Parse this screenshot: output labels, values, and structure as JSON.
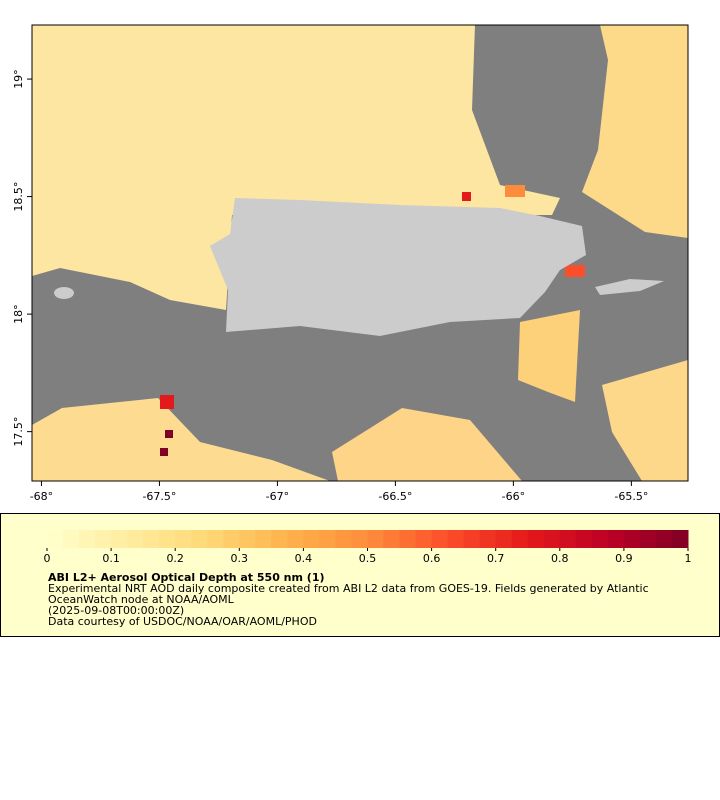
{
  "chart_data": {
    "type": "map",
    "xlim": [
      -68.04,
      -65.26
    ],
    "ylim": [
      17.29,
      19.23
    ],
    "xticks": [
      {
        "value": -68,
        "label": "-68°"
      },
      {
        "value": -67.5,
        "label": "-67.5°"
      },
      {
        "value": -67,
        "label": "-67°"
      },
      {
        "value": -66.5,
        "label": "-66.5°"
      },
      {
        "value": -66,
        "label": "-66°"
      },
      {
        "value": -65.5,
        "label": "-65.5°"
      }
    ],
    "yticks": [
      {
        "value": 17.5,
        "label": "17.5°"
      },
      {
        "value": 18,
        "label": "18°"
      },
      {
        "value": 18.5,
        "label": "18.5°"
      },
      {
        "value": 19,
        "label": "19°"
      }
    ],
    "colorbar": {
      "lim": [
        0,
        1
      ],
      "ticks": [
        0,
        0.1,
        0.2,
        0.3,
        0.4,
        0.5,
        0.6,
        0.7,
        0.8,
        0.9,
        1
      ],
      "colors": [
        "#ffffcc",
        "#ffeda0",
        "#fed976",
        "#feb24c",
        "#fd8d3c",
        "#fc4e2a",
        "#e31a1c",
        "#bd0026",
        "#800026"
      ]
    },
    "title": "ABI L2+ Aerosol Optical Depth at 550 nm (1)",
    "description": [
      "Experimental NRT AOD daily composite created from ABI L2 data from GOES-19. Fields generated by Atlantic",
      "OceanWatch node at NOAA/AOML"
    ],
    "date": "(2025-09-08T00:00:00Z)",
    "credit": "Data courtesy of USDOC/NOAA/OAR/AOML/PHOD"
  }
}
